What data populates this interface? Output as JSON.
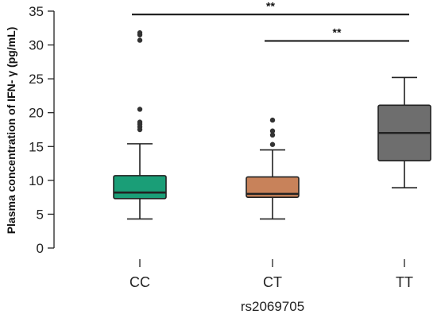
{
  "chart_data": {
    "type": "box",
    "title": "",
    "xlabel": "rs2069705",
    "ylabel": "Plasma concentration of IFN- γ (pg/mL)",
    "ylim": [
      0,
      35
    ],
    "yticks": [
      0,
      5,
      10,
      15,
      20,
      25,
      30,
      35
    ],
    "grid": false,
    "categories": [
      "CC",
      "CT",
      "TT"
    ],
    "boxes": [
      {
        "name": "CC",
        "color": "#1a9e77",
        "whisker_low": 4.3,
        "q1": 7.3,
        "median": 8.2,
        "q3": 10.7,
        "whisker_high": 15.4,
        "outliers": [
          17.5,
          17.9,
          18.3,
          18.6,
          20.5,
          30.7,
          31.5,
          31.8
        ]
      },
      {
        "name": "CT",
        "color": "#c8825a",
        "whisker_low": 4.3,
        "q1": 7.5,
        "median": 8.0,
        "q3": 10.5,
        "whisker_high": 14.5,
        "outliers": [
          15.3,
          16.7,
          17.3,
          18.9
        ]
      },
      {
        "name": "TT",
        "color": "#6e6e6e",
        "whisker_low": 8.9,
        "q1": 12.9,
        "median": 17.0,
        "q3": 21.1,
        "whisker_high": 25.2,
        "outliers": []
      }
    ],
    "annotations": [
      {
        "from": "CC",
        "to": "TT",
        "y": 34.5,
        "label": "**"
      },
      {
        "from": "CT",
        "to": "TT",
        "y": 30.6,
        "label": "**"
      }
    ]
  }
}
